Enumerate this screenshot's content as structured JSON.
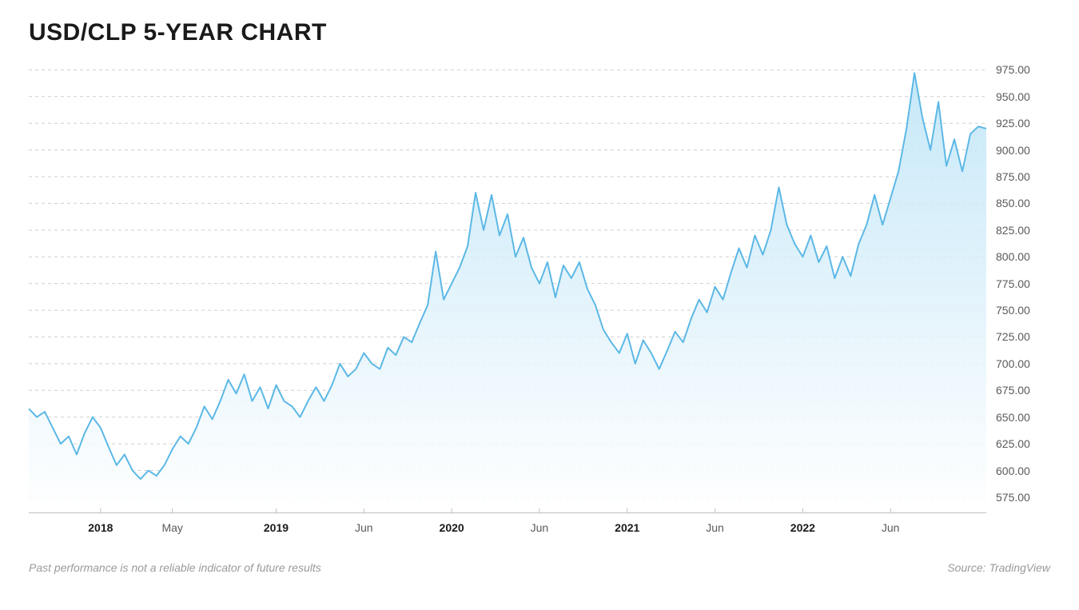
{
  "title": "USD/CLP 5-YEAR CHART",
  "footer": {
    "disclaimer": "Past performance is not a reliable indicator of future results",
    "source": "Source: TradingView"
  },
  "chart": {
    "type": "area",
    "ylim": [
      560,
      985
    ],
    "yticks": [
      575,
      600,
      625,
      650,
      675,
      700,
      725,
      750,
      775,
      800,
      825,
      850,
      875,
      900,
      925,
      950,
      975
    ],
    "ytick_labels": [
      "575.00",
      "600.00",
      "625.00",
      "650.00",
      "675.00",
      "700.00",
      "725.00",
      "750.00",
      "775.00",
      "800.00",
      "825.00",
      "850.00",
      "875.00",
      "900.00",
      "925.00",
      "950.00",
      "975.00"
    ],
    "xlim": [
      0,
      120
    ],
    "xticks": [
      {
        "pos": 9,
        "label": "2018",
        "bold": true
      },
      {
        "pos": 18,
        "label": "May",
        "bold": false
      },
      {
        "pos": 31,
        "label": "2019",
        "bold": true
      },
      {
        "pos": 42,
        "label": "Jun",
        "bold": false
      },
      {
        "pos": 53,
        "label": "2020",
        "bold": true
      },
      {
        "pos": 64,
        "label": "Jun",
        "bold": false
      },
      {
        "pos": 75,
        "label": "2021",
        "bold": true
      },
      {
        "pos": 86,
        "label": "Jun",
        "bold": false
      },
      {
        "pos": 97,
        "label": "2022",
        "bold": true
      },
      {
        "pos": 108,
        "label": "Jun",
        "bold": false
      }
    ],
    "line_color": "#5cb8e6",
    "line_width": 2,
    "fill_top_color": "#bde4f7",
    "fill_bottom_color": "#ffffff",
    "fill_opacity": 0.85,
    "grid_color": "#cfcfcf",
    "grid_dash": "4 4",
    "axis_color": "#bfbfbf",
    "background_color": "#ffffff",
    "label_fontsize": 14,
    "label_color": "#5a5a5a",
    "series": [
      {
        "x": 0,
        "y": 658
      },
      {
        "x": 1,
        "y": 650
      },
      {
        "x": 2,
        "y": 655
      },
      {
        "x": 3,
        "y": 640
      },
      {
        "x": 4,
        "y": 625
      },
      {
        "x": 5,
        "y": 632
      },
      {
        "x": 6,
        "y": 615
      },
      {
        "x": 7,
        "y": 635
      },
      {
        "x": 8,
        "y": 650
      },
      {
        "x": 9,
        "y": 640
      },
      {
        "x": 10,
        "y": 622
      },
      {
        "x": 11,
        "y": 605
      },
      {
        "x": 12,
        "y": 615
      },
      {
        "x": 13,
        "y": 600
      },
      {
        "x": 14,
        "y": 592
      },
      {
        "x": 15,
        "y": 600
      },
      {
        "x": 16,
        "y": 595
      },
      {
        "x": 17,
        "y": 605
      },
      {
        "x": 18,
        "y": 620
      },
      {
        "x": 19,
        "y": 632
      },
      {
        "x": 20,
        "y": 625
      },
      {
        "x": 21,
        "y": 640
      },
      {
        "x": 22,
        "y": 660
      },
      {
        "x": 23,
        "y": 648
      },
      {
        "x": 24,
        "y": 665
      },
      {
        "x": 25,
        "y": 685
      },
      {
        "x": 26,
        "y": 672
      },
      {
        "x": 27,
        "y": 690
      },
      {
        "x": 28,
        "y": 665
      },
      {
        "x": 29,
        "y": 678
      },
      {
        "x": 30,
        "y": 658
      },
      {
        "x": 31,
        "y": 680
      },
      {
        "x": 32,
        "y": 665
      },
      {
        "x": 33,
        "y": 660
      },
      {
        "x": 34,
        "y": 650
      },
      {
        "x": 35,
        "y": 665
      },
      {
        "x": 36,
        "y": 678
      },
      {
        "x": 37,
        "y": 665
      },
      {
        "x": 38,
        "y": 680
      },
      {
        "x": 39,
        "y": 700
      },
      {
        "x": 40,
        "y": 688
      },
      {
        "x": 41,
        "y": 695
      },
      {
        "x": 42,
        "y": 710
      },
      {
        "x": 43,
        "y": 700
      },
      {
        "x": 44,
        "y": 695
      },
      {
        "x": 45,
        "y": 715
      },
      {
        "x": 46,
        "y": 708
      },
      {
        "x": 47,
        "y": 725
      },
      {
        "x": 48,
        "y": 720
      },
      {
        "x": 49,
        "y": 738
      },
      {
        "x": 50,
        "y": 755
      },
      {
        "x": 51,
        "y": 805
      },
      {
        "x": 52,
        "y": 760
      },
      {
        "x": 53,
        "y": 775
      },
      {
        "x": 54,
        "y": 790
      },
      {
        "x": 55,
        "y": 810
      },
      {
        "x": 56,
        "y": 860
      },
      {
        "x": 57,
        "y": 825
      },
      {
        "x": 58,
        "y": 858
      },
      {
        "x": 59,
        "y": 820
      },
      {
        "x": 60,
        "y": 840
      },
      {
        "x": 61,
        "y": 800
      },
      {
        "x": 62,
        "y": 818
      },
      {
        "x": 63,
        "y": 790
      },
      {
        "x": 64,
        "y": 775
      },
      {
        "x": 65,
        "y": 795
      },
      {
        "x": 66,
        "y": 762
      },
      {
        "x": 67,
        "y": 792
      },
      {
        "x": 68,
        "y": 780
      },
      {
        "x": 69,
        "y": 795
      },
      {
        "x": 70,
        "y": 770
      },
      {
        "x": 71,
        "y": 755
      },
      {
        "x": 72,
        "y": 732
      },
      {
        "x": 73,
        "y": 720
      },
      {
        "x": 74,
        "y": 710
      },
      {
        "x": 75,
        "y": 728
      },
      {
        "x": 76,
        "y": 700
      },
      {
        "x": 77,
        "y": 722
      },
      {
        "x": 78,
        "y": 710
      },
      {
        "x": 79,
        "y": 695
      },
      {
        "x": 80,
        "y": 712
      },
      {
        "x": 81,
        "y": 730
      },
      {
        "x": 82,
        "y": 720
      },
      {
        "x": 83,
        "y": 742
      },
      {
        "x": 84,
        "y": 760
      },
      {
        "x": 85,
        "y": 748
      },
      {
        "x": 86,
        "y": 772
      },
      {
        "x": 87,
        "y": 760
      },
      {
        "x": 88,
        "y": 785
      },
      {
        "x": 89,
        "y": 808
      },
      {
        "x": 90,
        "y": 790
      },
      {
        "x": 91,
        "y": 820
      },
      {
        "x": 92,
        "y": 802
      },
      {
        "x": 93,
        "y": 825
      },
      {
        "x": 94,
        "y": 865
      },
      {
        "x": 95,
        "y": 830
      },
      {
        "x": 96,
        "y": 812
      },
      {
        "x": 97,
        "y": 800
      },
      {
        "x": 98,
        "y": 820
      },
      {
        "x": 99,
        "y": 795
      },
      {
        "x": 100,
        "y": 810
      },
      {
        "x": 101,
        "y": 780
      },
      {
        "x": 102,
        "y": 800
      },
      {
        "x": 103,
        "y": 782
      },
      {
        "x": 104,
        "y": 812
      },
      {
        "x": 105,
        "y": 830
      },
      {
        "x": 106,
        "y": 858
      },
      {
        "x": 107,
        "y": 830
      },
      {
        "x": 108,
        "y": 855
      },
      {
        "x": 109,
        "y": 880
      },
      {
        "x": 110,
        "y": 920
      },
      {
        "x": 111,
        "y": 972
      },
      {
        "x": 112,
        "y": 930
      },
      {
        "x": 113,
        "y": 900
      },
      {
        "x": 114,
        "y": 945
      },
      {
        "x": 115,
        "y": 885
      },
      {
        "x": 116,
        "y": 910
      },
      {
        "x": 117,
        "y": 880
      },
      {
        "x": 118,
        "y": 915
      },
      {
        "x": 119,
        "y": 922
      },
      {
        "x": 120,
        "y": 920
      }
    ]
  }
}
